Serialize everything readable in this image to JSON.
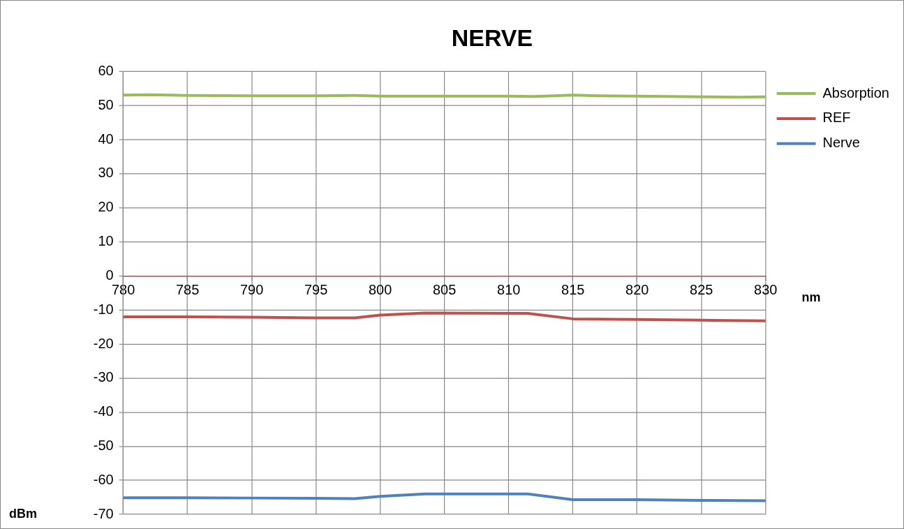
{
  "chart_data": {
    "type": "line",
    "title": "NERVE",
    "xlabel": "nm",
    "ylabel": "dBm",
    "xlim": [
      780,
      830
    ],
    "xticks": [
      780,
      785,
      790,
      795,
      800,
      805,
      810,
      815,
      820,
      825,
      830
    ],
    "ylim": [
      -70,
      60
    ],
    "yticks": [
      -70,
      -60,
      -50,
      -40,
      -30,
      -20,
      -10,
      0,
      10,
      20,
      30,
      40,
      50,
      60
    ],
    "grid": true,
    "legend": "right",
    "marker": "none",
    "line_style": "solid",
    "series": [
      {
        "name": "Absorption",
        "color": "#9bbb59",
        "x": [
          780,
          782,
          785,
          790,
          795,
          798,
          800,
          805,
          810,
          812,
          815,
          817,
          820,
          825,
          828,
          830
        ],
        "values": [
          53.1,
          53.2,
          53.0,
          52.9,
          52.9,
          53.0,
          52.8,
          52.8,
          52.8,
          52.7,
          53.1,
          52.9,
          52.8,
          52.6,
          52.5,
          52.6
        ]
      },
      {
        "name": "REF",
        "color": "#c0504d",
        "x": [
          780,
          785,
          790,
          795,
          798,
          800,
          803.5,
          811.5,
          815,
          820,
          825,
          830
        ],
        "values": [
          -12.0,
          -12.0,
          -12.1,
          -12.3,
          -12.3,
          -11.5,
          -10.9,
          -11.0,
          -12.6,
          -12.8,
          -13.0,
          -13.2
        ]
      },
      {
        "name": "Nerve",
        "color": "#4f81bd",
        "x": [
          780,
          785,
          790,
          795,
          798,
          800,
          803.5,
          811.5,
          815,
          820,
          825,
          830
        ],
        "values": [
          -65.1,
          -65.1,
          -65.2,
          -65.3,
          -65.4,
          -64.7,
          -64.0,
          -64.0,
          -65.7,
          -65.7,
          -65.9,
          -66.0
        ]
      }
    ]
  }
}
